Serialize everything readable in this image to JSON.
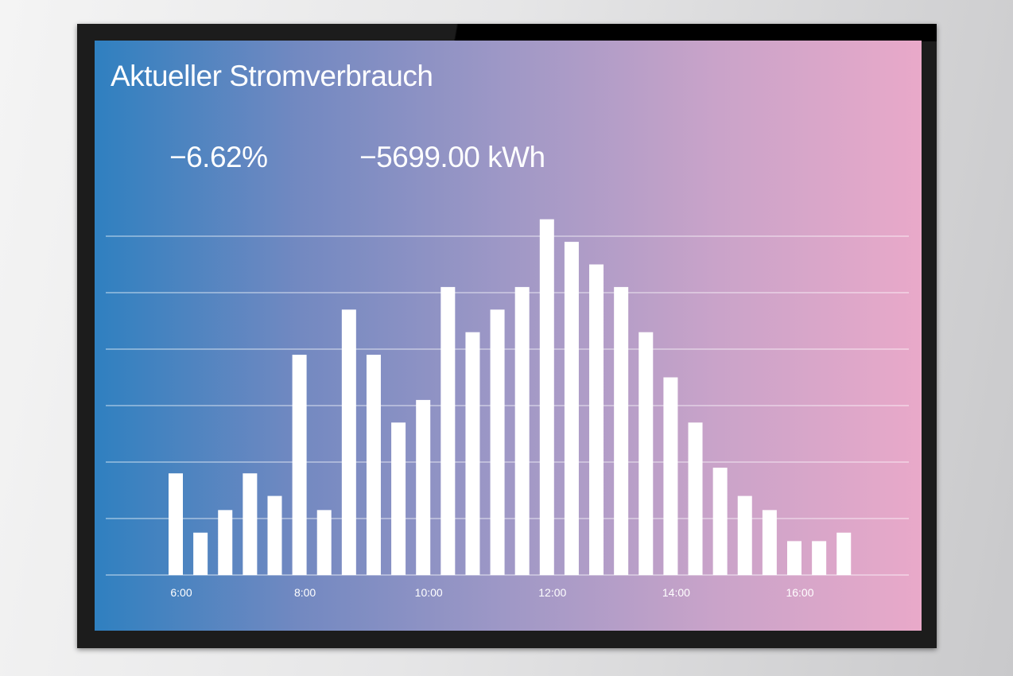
{
  "title": "Aktueller Stromverbrauch",
  "kpis": {
    "percent_change": "−6.62%",
    "energy_change": "−5699.00 kWh"
  },
  "colors": {
    "gradient_start": "#2f80c0",
    "gradient_end": "#e9a9c9",
    "bars": "#ffffff"
  },
  "chart_data": {
    "type": "bar",
    "title": "Aktueller Stromverbrauch",
    "xlabel": "",
    "ylabel": "",
    "x_unit": "hour of day",
    "x": [
      6.0,
      6.4,
      6.8,
      7.2,
      7.6,
      8.0,
      8.4,
      8.8,
      9.2,
      9.6,
      10.0,
      10.4,
      10.8,
      11.2,
      11.6,
      12.0,
      12.4,
      12.8,
      13.2,
      13.6,
      14.0,
      14.4,
      14.8,
      15.2,
      15.6,
      16.0,
      16.4,
      16.8
    ],
    "values": [
      18,
      7.5,
      11.5,
      18,
      14,
      39,
      11.5,
      47,
      39,
      27,
      31,
      51,
      43,
      47,
      51,
      63,
      59,
      55,
      51,
      43,
      35,
      27,
      19,
      14,
      11.5,
      6,
      6,
      7.5
    ],
    "ylim": [
      0,
      60
    ],
    "y_gridlines": [
      0,
      10,
      20,
      30,
      40,
      50,
      60
    ],
    "xticks": [
      6,
      8,
      10,
      12,
      14,
      16
    ],
    "xtick_labels": [
      "6:00",
      "8:00",
      "10:00",
      "12:00",
      "14:00",
      "16:00"
    ],
    "grid": true,
    "legend": "none"
  }
}
